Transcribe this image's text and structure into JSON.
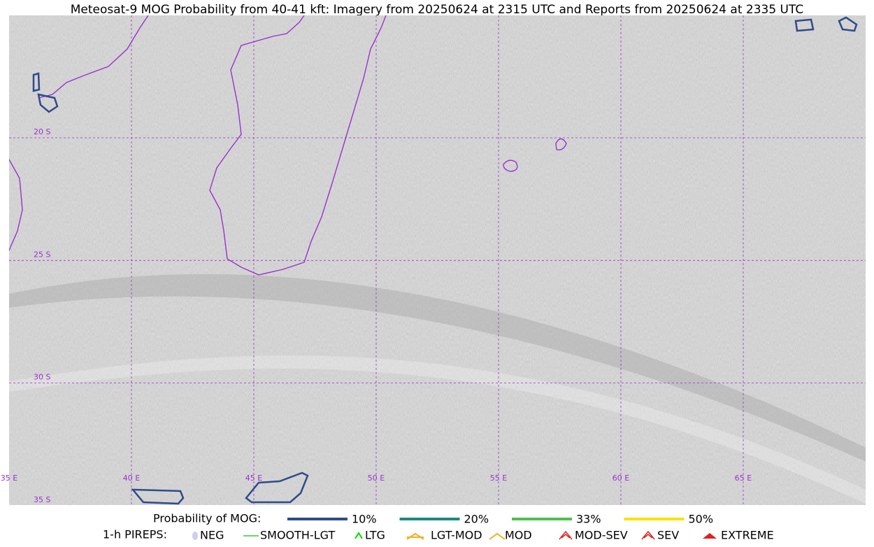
{
  "title": "Meteosat-9 MOG Probability from 40-41 kft: Imagery from 20250624 at 2315 UTC and Reports from 20250624 at 2335 UTC",
  "map": {
    "lat_labels": [
      "20 S",
      "25 S",
      "30 S",
      "35 S"
    ],
    "lon_labels": [
      "35 E",
      "40 E",
      "45 E",
      "50 E",
      "55 E",
      "60 E",
      "65 E"
    ]
  },
  "legend": {
    "title": "Probability of MOG:",
    "items": [
      {
        "label": "10%",
        "color": "#2f4b8a"
      },
      {
        "label": "20%",
        "color": "#1a8a80"
      },
      {
        "label": "33%",
        "color": "#4cc24c"
      },
      {
        "label": "50%",
        "color": "#ffe000"
      }
    ]
  },
  "pireps": {
    "title": "1-h PIREPS:",
    "items": [
      {
        "label": "NEG",
        "color": "#b8b8f0"
      },
      {
        "label": "SMOOTH-LGT",
        "color": "#33cc33"
      },
      {
        "label": "LTG",
        "color": "#00dd00"
      },
      {
        "label": "LGT-MOD",
        "color": "#f0b020"
      },
      {
        "label": "MOD",
        "color": "#f0b020"
      },
      {
        "label": "MOD-SEV",
        "color": "#e02020"
      },
      {
        "label": "SEV",
        "color": "#e02020"
      },
      {
        "label": "EXTREME",
        "color": "#e02020"
      }
    ]
  }
}
